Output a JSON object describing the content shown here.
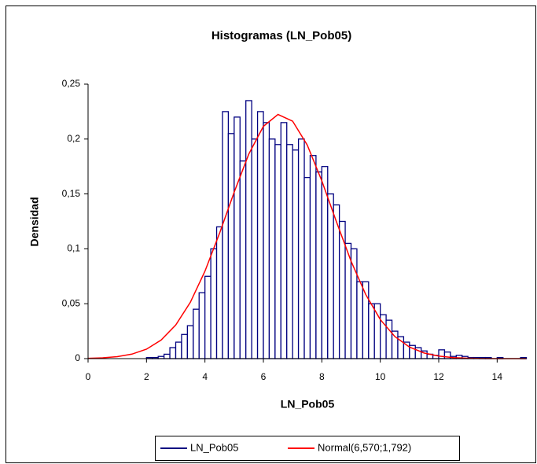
{
  "chart_data": {
    "type": "histogram",
    "title": "Histogramas (LN_Pob05)",
    "xlabel": "LN_Pob05",
    "ylabel": "Densidad",
    "bins": [
      0,
      0.2,
      0.4,
      0.6,
      0.8,
      1,
      1.2,
      1.4,
      1.6,
      1.8,
      2,
      2.2,
      2.4,
      2.6,
      2.8,
      3,
      3.2,
      3.4,
      3.6,
      3.8,
      4,
      4.2,
      4.4,
      4.6,
      4.8,
      5,
      5.2,
      5.4,
      5.6,
      5.8,
      6,
      6.2,
      6.4,
      6.6,
      6.8,
      7,
      7.2,
      7.4,
      7.6,
      7.8,
      8,
      8.2,
      8.4,
      8.6,
      8.8,
      9,
      9.2,
      9.4,
      9.6,
      9.8,
      10,
      10.2,
      10.4,
      10.6,
      10.8,
      11,
      11.2,
      11.4,
      11.6,
      11.8,
      12,
      12.2,
      12.4,
      12.6,
      12.8,
      13,
      13.2,
      13.4,
      13.6,
      13.8,
      14,
      14.2,
      14.4,
      14.6,
      14.8,
      15
    ],
    "series": [
      {
        "name": "LN_Pob05",
        "color": "#000080",
        "values": [
          0,
          0,
          0,
          0,
          0,
          0,
          0,
          0,
          0,
          0,
          0.001,
          0.001,
          0.002,
          0.004,
          0.01,
          0.015,
          0.022,
          0.03,
          0.045,
          0.06,
          0.075,
          0.1,
          0.12,
          0.225,
          0.205,
          0.22,
          0.18,
          0.235,
          0.2,
          0.225,
          0.215,
          0.2,
          0.195,
          0.215,
          0.195,
          0.19,
          0.2,
          0.165,
          0.185,
          0.17,
          0.175,
          0.15,
          0.14,
          0.125,
          0.105,
          0.1,
          0.07,
          0.07,
          0.05,
          0.05,
          0.04,
          0.035,
          0.025,
          0.02,
          0.015,
          0.012,
          0.01,
          0.007,
          0.004,
          0.003,
          0.008,
          0.006,
          0.002,
          0.003,
          0.002,
          0.001,
          0.001,
          0.001,
          0.001,
          0,
          0.001,
          0,
          0,
          0,
          0.001
        ]
      },
      {
        "name": "Normal(6,570;1,792)",
        "color": "#ff0000",
        "type": "line",
        "x": [
          0,
          0.5,
          1,
          1.5,
          2,
          2.5,
          3,
          3.5,
          4,
          4.5,
          5,
          5.5,
          6,
          6.5,
          7,
          7.5,
          8,
          8.5,
          9,
          9.5,
          10,
          10.5,
          11,
          11.5,
          12,
          12.5,
          13,
          13.5,
          14,
          14.5,
          15
        ],
        "values": [
          0.0003,
          0.0007,
          0.0018,
          0.0041,
          0.0086,
          0.0169,
          0.0306,
          0.0513,
          0.0796,
          0.1142,
          0.1516,
          0.1863,
          0.2116,
          0.2224,
          0.2163,
          0.1946,
          0.1619,
          0.1246,
          0.0888,
          0.0585,
          0.0356,
          0.0201,
          0.0105,
          0.0051,
          0.0023,
          0.0009,
          0.0004,
          0.0001,
          0,
          0,
          0
        ]
      }
    ],
    "xlim": [
      0,
      15
    ],
    "xticks": [
      0,
      2,
      4,
      6,
      8,
      10,
      12,
      14
    ],
    "ylim": [
      0,
      0.25
    ],
    "yticks": [
      0,
      {
        "value": 0.05,
        "label": "0,05"
      },
      {
        "value": 0.1,
        "label": "0,1"
      },
      {
        "value": 0.15,
        "label": "0,15"
      },
      {
        "value": 0.2,
        "label": "0,2"
      },
      {
        "value": 0.25,
        "label": "0,25"
      }
    ]
  }
}
